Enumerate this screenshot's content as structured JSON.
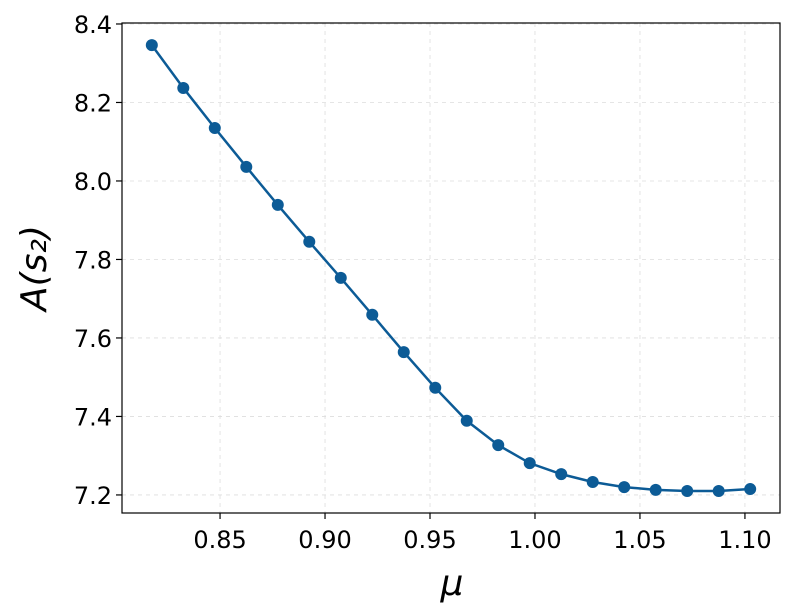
{
  "chart_data": {
    "type": "line",
    "xlabel": "μ",
    "ylabel": "A(s₂)",
    "x": [
      0.8175,
      0.8325,
      0.8475,
      0.8625,
      0.8775,
      0.8925,
      0.9075,
      0.9225,
      0.9375,
      0.9525,
      0.9675,
      0.9825,
      0.9975,
      1.0125,
      1.0275,
      1.0425,
      1.0575,
      1.0725,
      1.0875,
      1.1025
    ],
    "series": [
      {
        "name": "A(s₂)",
        "color": "#0c5b96",
        "values": [
          8.346,
          8.237,
          8.135,
          8.036,
          7.939,
          7.845,
          7.753,
          7.659,
          7.564,
          7.473,
          7.389,
          7.327,
          7.281,
          7.253,
          7.233,
          7.22,
          7.213,
          7.21,
          7.21,
          7.215
        ]
      }
    ],
    "xlim": [
      0.8033,
      1.1167
    ],
    "xticks": [
      0.85,
      {
        "value": 0.9,
        "label": "0.90"
      },
      0.95,
      {
        "value": 1.0,
        "label": "1.00"
      },
      1.05,
      {
        "value": 1.1,
        "label": "1.10"
      }
    ],
    "ylim": [
      7.154,
      8.4025
    ],
    "yticks": [
      {
        "value": 7.2,
        "label": "7.2"
      },
      7.4,
      7.6,
      7.8,
      {
        "value": 8.0,
        "label": "8.0"
      },
      8.2,
      8.4
    ],
    "grid": true
  }
}
